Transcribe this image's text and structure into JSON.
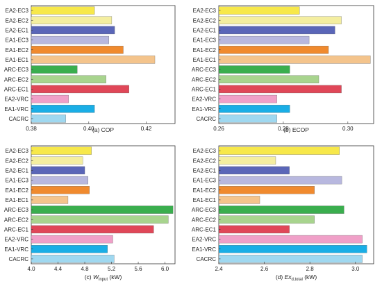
{
  "colors": {
    "EA2-EC3": "#f7e84a",
    "EA2-EC2": "#f4eea0",
    "EA2-EC1": "#5a66b8",
    "EA1-EC3": "#b8b8df",
    "EA1-EC2": "#f08a2e",
    "EA1-EC1": "#f4c48c",
    "ARC-EC3": "#3aae4e",
    "ARC-EC2": "#a8d48e",
    "ARC-EC1": "#e04758",
    "EA2-VRC": "#f0a0c8",
    "EA1-VRC": "#1aaee6",
    "CACRC": "#9fd8f0"
  },
  "chart_data": [
    {
      "type": "bar",
      "orientation": "horizontal",
      "caption": "(a) COP",
      "categories": [
        "EA2-EC3",
        "EA2-EC2",
        "EA2-EC1",
        "EA1-EC3",
        "EA1-EC2",
        "EA1-EC1",
        "ARC-EC3",
        "ARC-EC2",
        "ARC-EC1",
        "EA2-VRC",
        "EA1-VRC",
        "CACRC"
      ],
      "values": [
        0.402,
        0.408,
        0.409,
        0.407,
        0.412,
        0.423,
        0.396,
        0.406,
        0.414,
        0.393,
        0.402,
        0.392
      ],
      "xlim": [
        0.38,
        0.43
      ],
      "xticks": [
        "0.38",
        "0.40",
        "0.42"
      ],
      "xtick_values": [
        0.38,
        0.4,
        0.42
      ]
    },
    {
      "type": "bar",
      "orientation": "horizontal",
      "caption": "(b) ECOP",
      "categories": [
        "EA2-EC3",
        "EA2-EC2",
        "EA2-EC1",
        "EA1-EC3",
        "EA1-EC2",
        "EA1-EC1",
        "ARC-EC3",
        "ARC-EC2",
        "ARC-EC1",
        "EA2-VRC",
        "EA1-VRC",
        "CACRC"
      ],
      "values": [
        0.285,
        0.298,
        0.296,
        0.288,
        0.294,
        0.307,
        0.282,
        0.291,
        0.298,
        0.278,
        0.282,
        0.278
      ],
      "xlim": [
        0.26,
        0.308
      ],
      "xticks": [
        "0.26",
        "0.28",
        "0.30"
      ],
      "xtick_values": [
        0.26,
        0.28,
        0.3
      ]
    },
    {
      "type": "bar",
      "orientation": "horizontal",
      "caption_prefix": "(c) ",
      "caption_var": "W",
      "caption_sub": "input",
      "caption_suffix": " (kW)",
      "categories": [
        "EA2-EC3",
        "EA2-EC2",
        "EA2-EC1",
        "EA1-EC3",
        "EA1-EC2",
        "EA1-EC1",
        "ARC-EC3",
        "ARC-EC2",
        "ARC-EC1",
        "EA2-VRC",
        "EA1-VRC",
        "CACRC"
      ],
      "values": [
        4.9,
        4.77,
        4.8,
        4.85,
        4.87,
        4.55,
        6.12,
        6.05,
        5.83,
        5.22,
        5.14,
        5.24
      ],
      "xlim": [
        4.0,
        6.15
      ],
      "xticks": [
        "4.0",
        "4.4",
        "4.8",
        "5.2",
        "5.6",
        "6.0"
      ],
      "xtick_values": [
        4.0,
        4.4,
        4.8,
        5.2,
        5.6,
        6.0
      ]
    },
    {
      "type": "bar",
      "orientation": "horizontal",
      "caption_prefix": "(d) ",
      "caption_var": "Ex",
      "caption_sub": "d,total",
      "caption_suffix": " (kW)",
      "categories": [
        "EA2-EC3",
        "EA2-EC2",
        "EA2-EC1",
        "EA1-EC3",
        "EA1-EC2",
        "EA1-EC1",
        "ARC-EC3",
        "ARC-EC2",
        "ARC-EC1",
        "EA2-VRC",
        "EA1-VRC",
        "CACRC"
      ],
      "values": [
        2.93,
        2.65,
        2.71,
        2.94,
        2.82,
        2.58,
        2.95,
        2.82,
        2.71,
        3.03,
        3.05,
        3.03
      ],
      "xlim": [
        2.4,
        3.08
      ],
      "xticks": [
        "2.4",
        "2.6",
        "2.8",
        "3.0"
      ],
      "xtick_values": [
        2.4,
        2.6,
        2.8,
        3.0
      ]
    }
  ]
}
